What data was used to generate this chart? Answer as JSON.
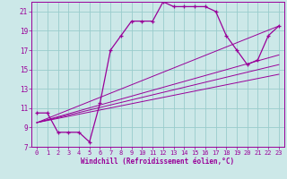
{
  "xlabel": "Windchill (Refroidissement éolien,°C)",
  "bg_color": "#cce8e8",
  "line_color": "#990099",
  "grid_color": "#99cccc",
  "xlim": [
    -0.5,
    23.5
  ],
  "ylim": [
    7,
    22
  ],
  "yticks": [
    7,
    9,
    11,
    13,
    15,
    17,
    19,
    21
  ],
  "xticks": [
    0,
    1,
    2,
    3,
    4,
    5,
    6,
    7,
    8,
    9,
    10,
    11,
    12,
    13,
    14,
    15,
    16,
    17,
    18,
    19,
    20,
    21,
    22,
    23
  ],
  "series": [
    [
      0,
      10.5
    ],
    [
      1,
      10.5
    ],
    [
      2,
      8.5
    ],
    [
      3,
      8.5
    ],
    [
      4,
      8.5
    ],
    [
      5,
      7.5
    ],
    [
      6,
      11.5
    ],
    [
      7,
      17.0
    ],
    [
      8,
      18.5
    ],
    [
      9,
      20.0
    ],
    [
      10,
      20.0
    ],
    [
      11,
      20.0
    ],
    [
      12,
      22.0
    ],
    [
      13,
      21.5
    ],
    [
      14,
      21.5
    ],
    [
      15,
      21.5
    ],
    [
      16,
      21.5
    ],
    [
      17,
      21.0
    ],
    [
      18,
      18.5
    ],
    [
      19,
      17.0
    ],
    [
      20,
      15.5
    ],
    [
      21,
      16.0
    ],
    [
      22,
      18.5
    ],
    [
      23,
      19.5
    ]
  ],
  "diag_lines": [
    [
      [
        0,
        9.5
      ],
      [
        23,
        19.5
      ]
    ],
    [
      [
        0,
        9.5
      ],
      [
        23,
        16.5
      ]
    ],
    [
      [
        0,
        9.5
      ],
      [
        23,
        15.5
      ]
    ],
    [
      [
        0,
        9.5
      ],
      [
        23,
        14.5
      ]
    ]
  ]
}
